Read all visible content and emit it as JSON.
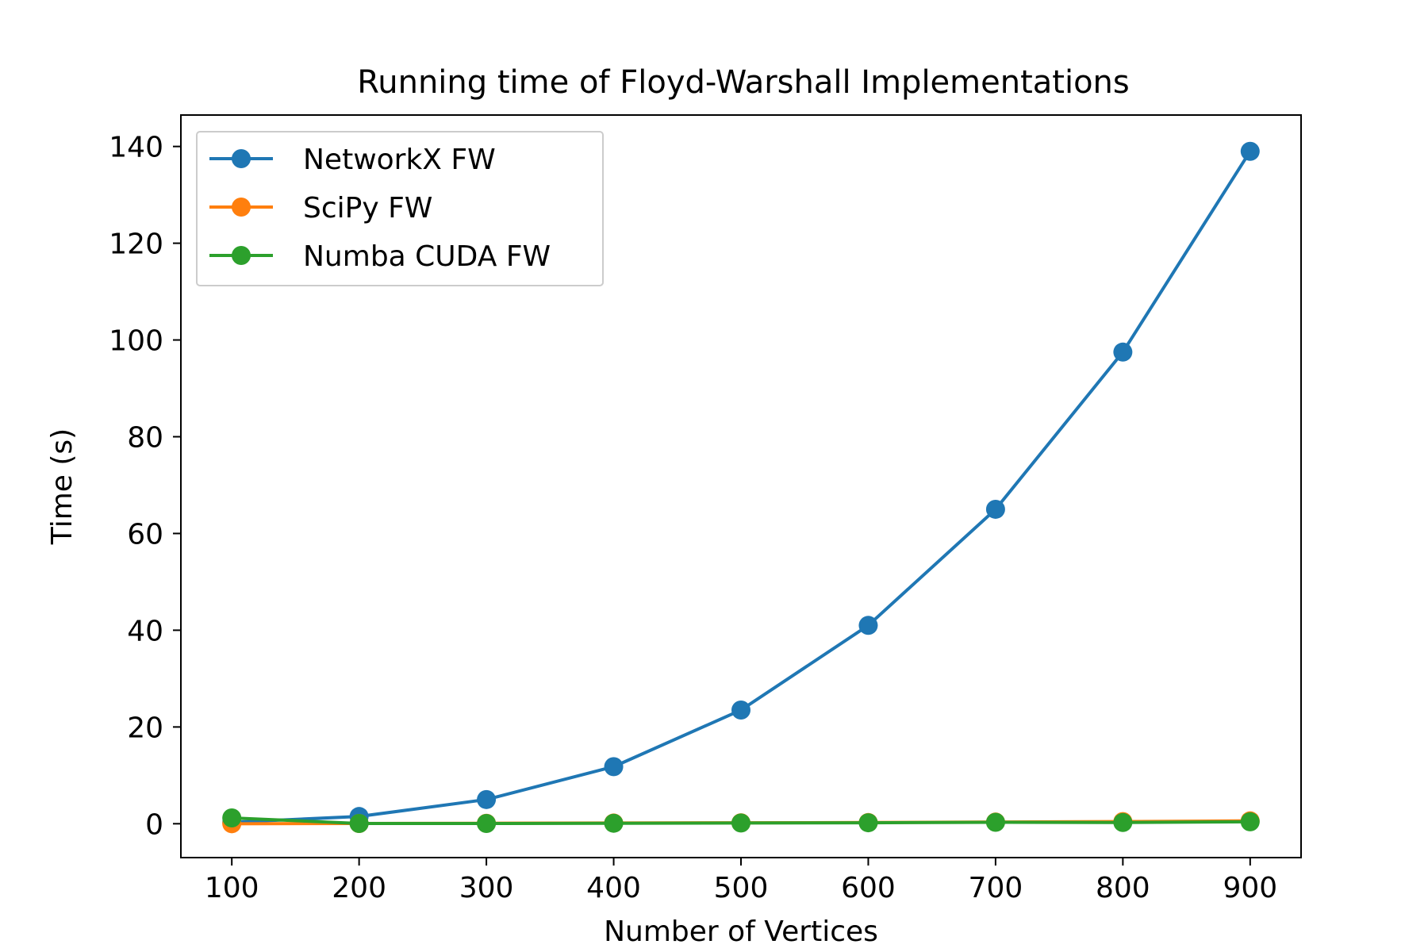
{
  "chart_data": {
    "type": "line",
    "title": "Running time of Floyd-Warshall Implementations",
    "xlabel": "Number of Vertices",
    "ylabel": "Time (s)",
    "xlim": [
      60,
      940
    ],
    "ylim": [
      -7,
      146.5
    ],
    "xticks": [
      100,
      200,
      300,
      400,
      500,
      600,
      700,
      800,
      900
    ],
    "yticks": [
      0,
      20,
      40,
      60,
      80,
      100,
      120,
      140
    ],
    "grid": false,
    "legend_position": "upper-left",
    "x": [
      100,
      200,
      300,
      400,
      500,
      600,
      700,
      800,
      900
    ],
    "series": [
      {
        "name": "NetworkX FW",
        "color": "#1f77b4",
        "marker": "circle",
        "values": [
          0.3,
          1.5,
          5.0,
          11.8,
          23.5,
          41.0,
          65.0,
          97.5,
          139.0
        ]
      },
      {
        "name": "SciPy FW",
        "color": "#ff7f0e",
        "marker": "circle",
        "values": [
          0.0,
          0.05,
          0.1,
          0.15,
          0.2,
          0.25,
          0.35,
          0.45,
          0.6
        ]
      },
      {
        "name": "Numba CUDA FW",
        "color": "#2ca02c",
        "marker": "circle",
        "values": [
          1.2,
          0.05,
          0.05,
          0.1,
          0.15,
          0.2,
          0.3,
          0.25,
          0.4
        ]
      }
    ]
  }
}
